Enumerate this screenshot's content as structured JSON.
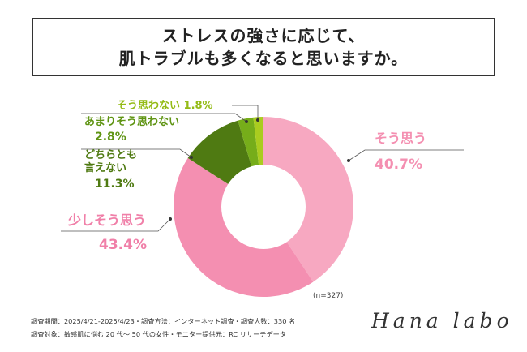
{
  "title": {
    "line1": "ストレスの強さに応じて、",
    "line2": "肌トラブルも多くなると思いますか。"
  },
  "chart_data": {
    "type": "pie",
    "note": "(n=327)",
    "slices": [
      {
        "label": "そう思う",
        "value": 40.7,
        "display": "40.7%",
        "color": "#f7a8c1",
        "text_color": "#f48fb1"
      },
      {
        "label": "少しそう思う",
        "value": 43.4,
        "display": "43.4%",
        "color": "#f48fb1",
        "text_color": "#f07fa8"
      },
      {
        "label": "どちらとも言えない",
        "value": 11.3,
        "display": "11.3%",
        "color": "#4f7a12",
        "text_color": "#4f7a12"
      },
      {
        "label": "あまりそう思わない",
        "value": 2.8,
        "display": "2.8%",
        "color": "#76ad1a",
        "text_color": "#5f9413"
      },
      {
        "label": "そう思わない",
        "value": 1.8,
        "display": "1.8%",
        "color": "#aacc1f",
        "text_color": "#94bb16"
      }
    ]
  },
  "labels": {
    "l0_name": "そう思う",
    "l0_value": "40.7%",
    "l1_name": "少しそう思う",
    "l1_value": "43.4%",
    "l2_name1": "どちらとも",
    "l2_name2": "言えない",
    "l2_value": "11.3%",
    "l3_name": "あまりそう思わない",
    "l3_value": "2.8%",
    "l4_text": "そう思わない 1.8%"
  },
  "footer": {
    "line1": "調査期間：2025/4/21-2025/4/23・調査方法：インターネット調査・調査人数：330 名",
    "line2": "調査対象：敏感肌に悩む 20 代〜 50 代の女性・モニター提供元：RC リサーチデータ"
  },
  "logo": "Hana labo"
}
